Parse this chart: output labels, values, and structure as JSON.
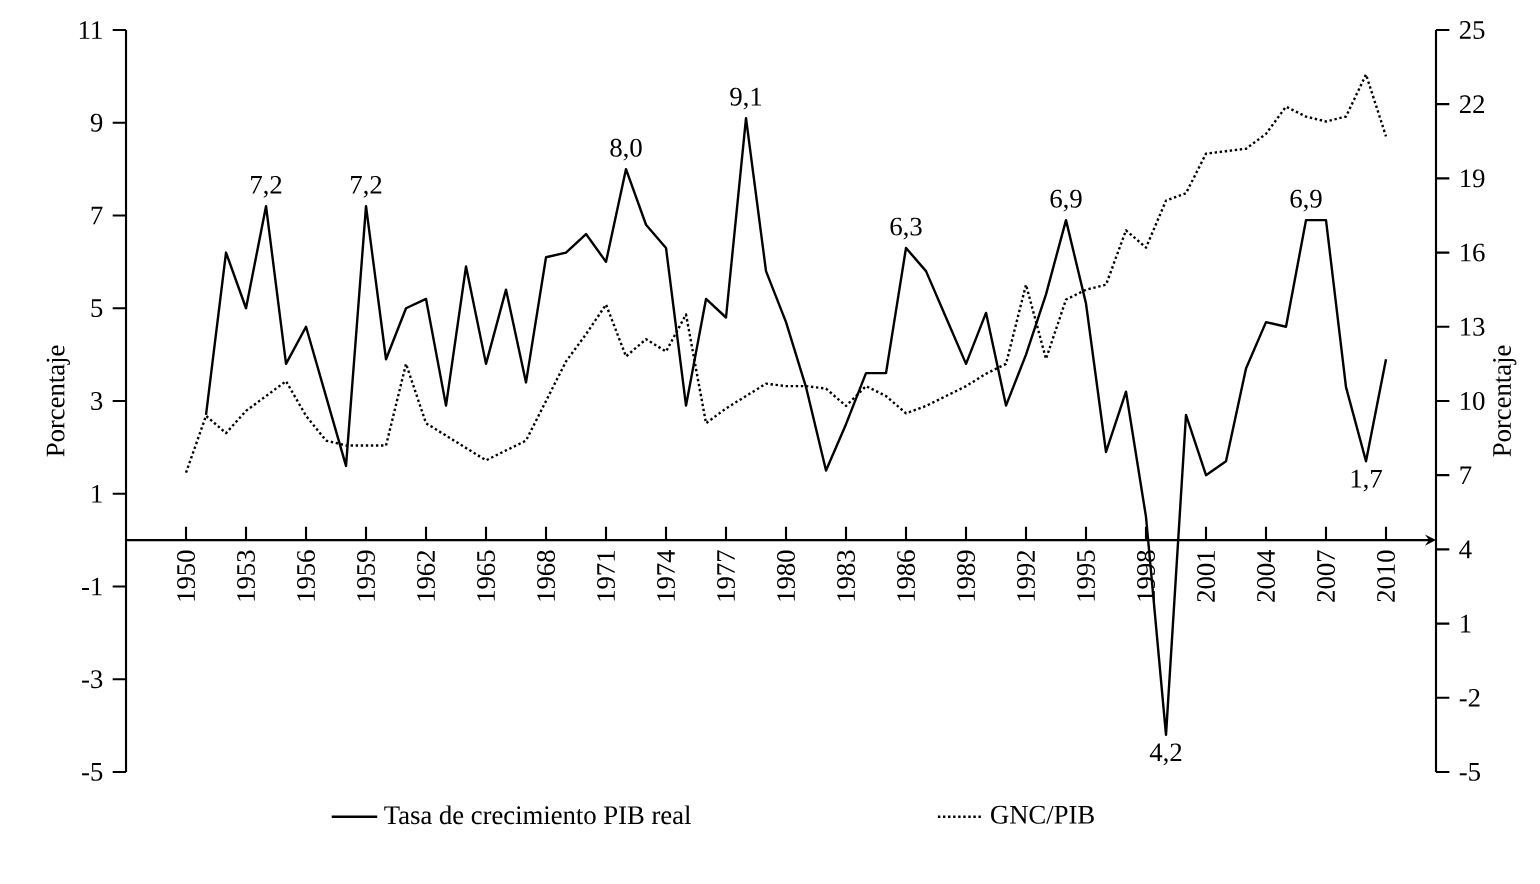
{
  "chart_data": {
    "type": "line",
    "x": [
      1950,
      1951,
      1952,
      1953,
      1954,
      1955,
      1956,
      1957,
      1958,
      1959,
      1960,
      1961,
      1962,
      1963,
      1964,
      1965,
      1966,
      1967,
      1968,
      1969,
      1970,
      1971,
      1972,
      1973,
      1974,
      1975,
      1976,
      1977,
      1978,
      1979,
      1980,
      1981,
      1982,
      1983,
      1984,
      1985,
      1986,
      1987,
      1988,
      1989,
      1990,
      1991,
      1992,
      1993,
      1994,
      1995,
      1996,
      1997,
      1998,
      1999,
      2000,
      2001,
      2002,
      2003,
      2004,
      2005,
      2006,
      2007,
      2008,
      2009,
      2010
    ],
    "series": [
      {
        "name": "Tasa de crecimiento PIB real",
        "color": "#000000",
        "line_style": "solid",
        "axis": "y",
        "values": [
          null,
          2.7,
          6.2,
          5.0,
          7.2,
          3.8,
          4.6,
          3.1,
          1.6,
          7.2,
          3.9,
          5.0,
          5.2,
          2.9,
          5.9,
          3.8,
          5.4,
          3.4,
          6.1,
          6.2,
          6.6,
          6.0,
          8.0,
          6.8,
          6.3,
          2.9,
          5.2,
          4.8,
          9.1,
          5.8,
          4.7,
          3.3,
          1.5,
          2.5,
          3.6,
          3.6,
          6.3,
          5.8,
          4.8,
          3.8,
          4.9,
          2.9,
          4.0,
          5.3,
          6.9,
          5.1,
          1.9,
          3.2,
          0.5,
          -4.2,
          2.7,
          1.4,
          1.7,
          3.7,
          4.7,
          4.6,
          6.9,
          6.9,
          3.3,
          1.7,
          3.9
        ]
      },
      {
        "name": "GNC/PIB",
        "color": "#000000",
        "line_style": "dotted",
        "axis": "y2",
        "values": [
          7.1,
          9.4,
          8.7,
          9.6,
          10.2,
          10.8,
          9.4,
          8.4,
          8.2,
          8.2,
          8.2,
          11.5,
          9.1,
          8.6,
          8.1,
          7.6,
          8.0,
          8.4,
          10.0,
          11.6,
          12.7,
          13.9,
          11.8,
          12.5,
          12.0,
          13.5,
          9.1,
          9.7,
          10.2,
          10.7,
          10.6,
          10.6,
          10.5,
          9.8,
          10.6,
          10.2,
          9.5,
          9.8,
          10.2,
          10.6,
          11.1,
          11.5,
          14.7,
          11.7,
          14.1,
          14.5,
          14.7,
          16.9,
          16.2,
          18.1,
          18.4,
          20.0,
          20.1,
          20.2,
          20.8,
          21.9,
          21.5,
          21.3,
          21.5,
          23.2,
          20.7
        ]
      }
    ],
    "xlim": [
      1947,
      2012.5
    ],
    "xticks": [
      1950,
      1953,
      1956,
      1959,
      1962,
      1965,
      1968,
      1971,
      1974,
      1977,
      1980,
      1983,
      1986,
      1989,
      1992,
      1995,
      1998,
      2001,
      2004,
      2007,
      2010
    ],
    "ylim": [
      -5,
      11
    ],
    "yticks": [
      -5,
      -3,
      -1,
      1,
      3,
      5,
      7,
      9,
      11
    ],
    "y2lim": [
      -5,
      25
    ],
    "y2ticks": [
      -5,
      -2,
      1,
      4,
      7,
      10,
      13,
      16,
      19,
      22,
      25
    ],
    "ylabel": "Porcentaje",
    "y2label": "Porcentaje",
    "legend": "bottom",
    "annotations": [
      {
        "text": "7,2",
        "x": 1954,
        "y": 7.2
      },
      {
        "text": "7,2",
        "x": 1959,
        "y": 7.2
      },
      {
        "text": "8,0",
        "x": 1972,
        "y": 8.0
      },
      {
        "text": "9,1",
        "x": 1978,
        "y": 9.1
      },
      {
        "text": "6,3",
        "x": 1986,
        "y": 6.3
      },
      {
        "text": "6,9",
        "x": 1994,
        "y": 6.9
      },
      {
        "text": "4,2",
        "x": 1999,
        "y": -4.2
      },
      {
        "text": "6,9",
        "x": 2006,
        "y": 6.9
      },
      {
        "text": "1,7",
        "x": 2009,
        "y": 1.7
      }
    ]
  }
}
